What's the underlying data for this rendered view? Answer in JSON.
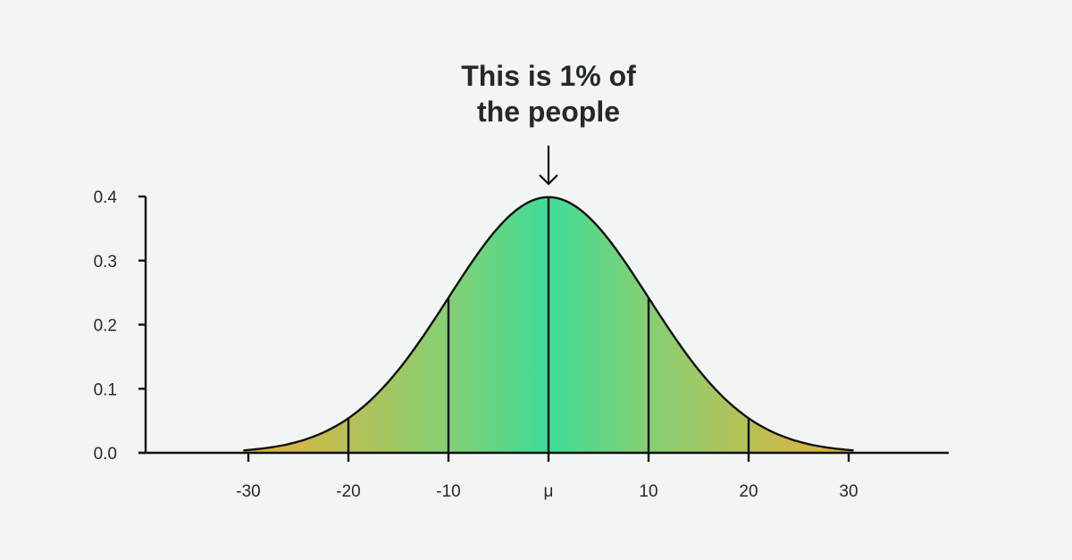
{
  "chart_data": {
    "type": "area",
    "title": "",
    "xlabel": "",
    "ylabel": "",
    "annotation": {
      "lines": [
        "This is 1% of",
        "the people"
      ],
      "points_to": "μ",
      "icon": "arrow-down-icon"
    },
    "x_ticks": [
      "-30",
      "-20",
      "-10",
      "μ",
      "10",
      "20",
      "30"
    ],
    "x_tick_values": [
      -30,
      -20,
      -10,
      0,
      10,
      20,
      30
    ],
    "y_ticks": [
      "0.0",
      "0.1",
      "0.2",
      "0.3",
      "0.4"
    ],
    "y_tick_values": [
      0.0,
      0.1,
      0.2,
      0.3,
      0.4
    ],
    "xlim": [
      -41,
      40
    ],
    "ylim": [
      0,
      0.4
    ],
    "curve": {
      "distribution": "normal",
      "mean": 0,
      "sd_units": 10,
      "peak": 0.399
    },
    "divider_x": [
      -20,
      -10,
      0,
      10,
      20
    ],
    "grid": false,
    "colors": {
      "center": "#3fdc98",
      "mid": "#86cf73",
      "edge": "#e8b13a",
      "line": "#111111",
      "text": "#25292b",
      "background": "#f1f5f4"
    }
  }
}
